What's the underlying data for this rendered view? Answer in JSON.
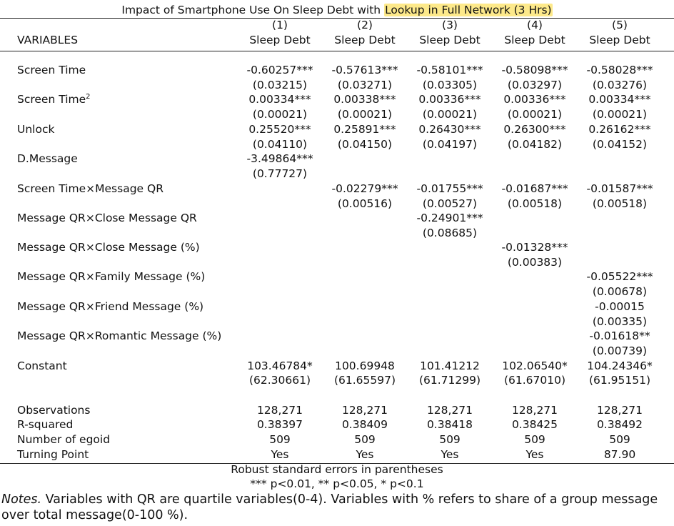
{
  "title": {
    "prefix": "Impact of Smartphone Use On Sleep Debt with ",
    "highlight": "Lookup in Full Network (3 Hrs)"
  },
  "header": {
    "variables_label": "VARIABLES",
    "col_numbers": [
      "(1)",
      "(2)",
      "(3)",
      "(4)",
      "(5)"
    ],
    "col_names": [
      "Sleep Debt",
      "Sleep Debt",
      "Sleep Debt",
      "Sleep Debt",
      "Sleep Debt"
    ]
  },
  "rows": {
    "screen_time": {
      "label": "Screen Time",
      "coef": [
        "-0.60257***",
        "-0.57613***",
        "-0.58101***",
        "-0.58098***",
        "-0.58028***"
      ],
      "se": [
        "(0.03215)",
        "(0.03271)",
        "(0.03305)",
        "(0.03297)",
        "(0.03276)"
      ]
    },
    "screen_time_sq": {
      "label": "Screen Time",
      "superscript": "2",
      "coef": [
        "0.00334***",
        "0.00338***",
        "0.00336***",
        "0.00336***",
        "0.00334***"
      ],
      "se": [
        "(0.00021)",
        "(0.00021)",
        "(0.00021)",
        "(0.00021)",
        "(0.00021)"
      ]
    },
    "unlock": {
      "label": "Unlock",
      "coef": [
        "0.25520***",
        "0.25891***",
        "0.26430***",
        "0.26300***",
        "0.26162***"
      ],
      "se": [
        "(0.04110)",
        "(0.04150)",
        "(0.04197)",
        "(0.04182)",
        "(0.04152)"
      ]
    },
    "d_message": {
      "label": "D.Message",
      "coef": [
        "-3.49864***",
        "",
        "",
        "",
        ""
      ],
      "se": [
        "(0.77727)",
        "",
        "",
        "",
        ""
      ]
    },
    "screen_time_x_message_qr": {
      "label": "Screen Time×Message QR",
      "coef": [
        "",
        "-0.02279***",
        "-0.01755***",
        "-0.01687***",
        "-0.01587***"
      ],
      "se": [
        "",
        "(0.00516)",
        "(0.00527)",
        "(0.00518)",
        "(0.00518)"
      ]
    },
    "message_qr_x_close_qr": {
      "label": "Message QR×Close Message QR",
      "coef": [
        "",
        "",
        "-0.24901***",
        "",
        ""
      ],
      "se": [
        "",
        "",
        "(0.08685)",
        "",
        ""
      ]
    },
    "message_qr_x_close_pct": {
      "label": "Message QR×Close Message (%)",
      "coef": [
        "",
        "",
        "",
        "-0.01328***",
        ""
      ],
      "se": [
        "",
        "",
        "",
        "(0.00383)",
        ""
      ]
    },
    "message_qr_x_family_pct": {
      "label": "Message QR×Family Message (%)",
      "coef": [
        "",
        "",
        "",
        "",
        "-0.05522***"
      ],
      "se": [
        "",
        "",
        "",
        "",
        "(0.00678)"
      ]
    },
    "message_qr_x_friend_pct": {
      "label": "Message QR×Friend Message (%)",
      "coef": [
        "",
        "",
        "",
        "",
        "-0.00015"
      ],
      "se": [
        "",
        "",
        "",
        "",
        "(0.00335)"
      ]
    },
    "message_qr_x_romantic_pct": {
      "label": "Message QR×Romantic Message (%)",
      "coef": [
        "",
        "",
        "",
        "",
        "-0.01618**"
      ],
      "se": [
        "",
        "",
        "",
        "",
        "(0.00739)"
      ]
    },
    "constant": {
      "label": "Constant",
      "coef": [
        "103.46784*",
        "100.69948",
        "101.41212",
        "102.06540*",
        "104.24346*"
      ],
      "se": [
        "(62.30661)",
        "(61.65597)",
        "(61.71299)",
        "(61.67010)",
        "(61.95151)"
      ]
    }
  },
  "stats": {
    "observations": {
      "label": "Observations",
      "values": [
        "128,271",
        "128,271",
        "128,271",
        "128,271",
        "128,271"
      ]
    },
    "r_squared": {
      "label": "R-squared",
      "values": [
        "0.38397",
        "0.38409",
        "0.38418",
        "0.38425",
        "0.38492"
      ]
    },
    "num_egoid": {
      "label": "Number of egoid",
      "values": [
        "509",
        "509",
        "509",
        "509",
        "509"
      ]
    },
    "turning_point": {
      "label": "Turning Point",
      "values": [
        "Yes",
        "Yes",
        "Yes",
        "Yes",
        "87.90"
      ]
    }
  },
  "footer": {
    "robust_se": "Robust standard errors in parentheses",
    "significance": "*** p<0.01, ** p<0.05, * p<0.1"
  },
  "notes": {
    "label": "Notes.",
    "text": " Variables with QR are quartile variables(0-4). Variables with % refers to share of a group message over total message(0-100 %)."
  }
}
